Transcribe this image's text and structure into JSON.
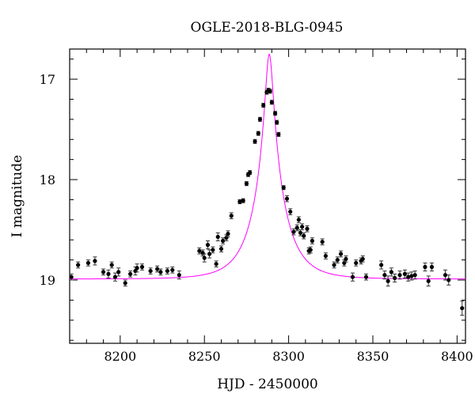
{
  "chart_data": {
    "type": "scatter",
    "title": "OGLE-2018-BLG-0945",
    "xlabel": "HJD - 2450000",
    "ylabel": "I magnitude",
    "xlim": [
      8170,
      8405
    ],
    "ylim": [
      19.63,
      16.7
    ],
    "y_inverted": true,
    "grid": false,
    "legend": "none",
    "x_ticks": [
      8200,
      8250,
      8300,
      8350,
      8400
    ],
    "y_ticks": [
      17,
      18,
      19
    ],
    "colors": {
      "points": "#000000",
      "model": "#ff00ff",
      "axes": "#000000"
    },
    "series": [
      {
        "points": [
          [
            8171,
            18.97,
            0.03
          ],
          [
            8175,
            18.85,
            0.03
          ],
          [
            8181,
            18.83,
            0.03
          ],
          [
            8185,
            18.81,
            0.04
          ],
          [
            8190,
            18.92,
            0.03
          ],
          [
            8193,
            18.94,
            0.04
          ],
          [
            8195,
            18.85,
            0.03
          ],
          [
            8197,
            18.97,
            0.04
          ],
          [
            8199,
            18.92,
            0.04
          ],
          [
            8203,
            19.03,
            0.03
          ],
          [
            8206,
            18.94,
            0.03
          ],
          [
            8209,
            18.91,
            0.04
          ],
          [
            8210,
            18.88,
            0.04
          ],
          [
            8213,
            18.87,
            0.03
          ],
          [
            8218,
            18.91,
            0.03
          ],
          [
            8222,
            18.89,
            0.03
          ],
          [
            8224,
            18.92,
            0.03
          ],
          [
            8228,
            18.91,
            0.03
          ],
          [
            8231,
            18.9,
            0.03
          ],
          [
            8235,
            18.95,
            0.04
          ],
          [
            8247,
            18.71,
            0.03
          ],
          [
            8249,
            18.73,
            0.03
          ],
          [
            8250,
            18.78,
            0.04
          ],
          [
            8252,
            18.65,
            0.04
          ],
          [
            8253,
            18.74,
            0.04
          ],
          [
            8255,
            18.7,
            0.03
          ],
          [
            8257,
            18.84,
            0.03
          ],
          [
            8258,
            18.57,
            0.04
          ],
          [
            8260,
            18.69,
            0.03
          ],
          [
            8261,
            18.61,
            0.03
          ],
          [
            8263,
            18.58,
            0.03
          ],
          [
            8264,
            18.54,
            0.03
          ],
          [
            8266,
            18.36,
            0.03
          ],
          [
            8271,
            18.22,
            0.02
          ],
          [
            8273,
            18.21,
            0.02
          ],
          [
            8275,
            18.04,
            0.02
          ],
          [
            8276,
            17.95,
            0.02
          ],
          [
            8277,
            17.93,
            0.02
          ],
          [
            8280,
            17.62,
            0.02
          ],
          [
            8282,
            17.54,
            0.02
          ],
          [
            8283,
            17.4,
            0.02
          ],
          [
            8285,
            17.26,
            0.02
          ],
          [
            8287,
            17.13,
            0.02
          ],
          [
            8288,
            17.11,
            0.02
          ],
          [
            8289,
            17.12,
            0.02
          ],
          [
            8290,
            17.23,
            0.02
          ],
          [
            8292,
            17.34,
            0.02
          ],
          [
            8293,
            17.43,
            0.02
          ],
          [
            8294,
            17.55,
            0.02
          ],
          [
            8297,
            18.08,
            0.02
          ],
          [
            8299,
            18.19,
            0.03
          ],
          [
            8301,
            18.32,
            0.03
          ],
          [
            8303,
            18.52,
            0.03
          ],
          [
            8305,
            18.48,
            0.03
          ],
          [
            8306,
            18.4,
            0.03
          ],
          [
            8307,
            18.53,
            0.03
          ],
          [
            8308,
            18.47,
            0.03
          ],
          [
            8309,
            18.56,
            0.03
          ],
          [
            8311,
            18.49,
            0.03
          ],
          [
            8312,
            18.71,
            0.03
          ],
          [
            8313,
            18.7,
            0.03
          ],
          [
            8314,
            18.61,
            0.03
          ],
          [
            8320,
            18.62,
            0.03
          ],
          [
            8322,
            18.76,
            0.03
          ],
          [
            8327,
            18.85,
            0.03
          ],
          [
            8329,
            18.8,
            0.03
          ],
          [
            8331,
            18.74,
            0.03
          ],
          [
            8333,
            18.83,
            0.03
          ],
          [
            8334,
            18.79,
            0.03
          ],
          [
            8338,
            18.97,
            0.04
          ],
          [
            8340,
            18.83,
            0.03
          ],
          [
            8343,
            18.81,
            0.03
          ],
          [
            8344,
            18.79,
            0.03
          ],
          [
            8346,
            18.97,
            0.03
          ],
          [
            8355,
            18.85,
            0.04
          ],
          [
            8357,
            18.95,
            0.04
          ],
          [
            8359,
            19.01,
            0.05
          ],
          [
            8361,
            18.92,
            0.04
          ],
          [
            8363,
            18.98,
            0.04
          ],
          [
            8366,
            18.95,
            0.04
          ],
          [
            8369,
            18.94,
            0.04
          ],
          [
            8371,
            18.97,
            0.04
          ],
          [
            8373,
            18.96,
            0.04
          ],
          [
            8375,
            18.95,
            0.04
          ],
          [
            8381,
            18.87,
            0.04
          ],
          [
            8383,
            19.01,
            0.05
          ],
          [
            8385,
            18.87,
            0.04
          ],
          [
            8393,
            18.95,
            0.05
          ],
          [
            8395,
            19.0,
            0.05
          ],
          [
            8403,
            19.28,
            0.07
          ]
        ]
      }
    ],
    "model": {
      "type": "point-lens",
      "t0": 8288.5,
      "u0": 0.128,
      "tE": 17.0,
      "I_base": 18.99
    }
  }
}
